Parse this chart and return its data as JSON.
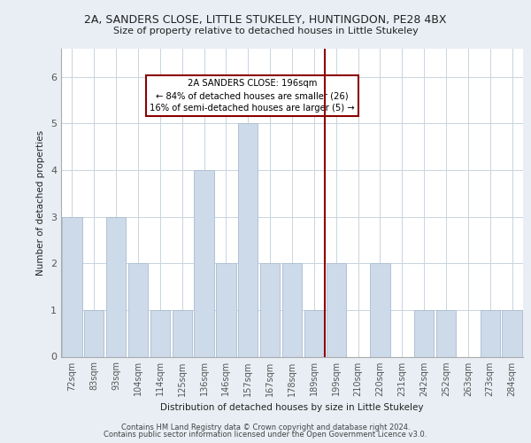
{
  "title": "2A, SANDERS CLOSE, LITTLE STUKELEY, HUNTINGDON, PE28 4BX",
  "subtitle": "Size of property relative to detached houses in Little Stukeley",
  "xlabel": "Distribution of detached houses by size in Little Stukeley",
  "ylabel": "Number of detached properties",
  "bar_labels": [
    "72sqm",
    "83sqm",
    "93sqm",
    "104sqm",
    "114sqm",
    "125sqm",
    "136sqm",
    "146sqm",
    "157sqm",
    "167sqm",
    "178sqm",
    "189sqm",
    "199sqm",
    "210sqm",
    "220sqm",
    "231sqm",
    "242sqm",
    "252sqm",
    "263sqm",
    "273sqm",
    "284sqm"
  ],
  "bar_values": [
    3,
    1,
    3,
    2,
    1,
    1,
    4,
    2,
    5,
    2,
    2,
    1,
    2,
    0,
    2,
    0,
    1,
    1,
    0,
    1,
    1
  ],
  "bar_color": "#ccdaea",
  "bar_edge_color": "#aabcce",
  "vline_index": 12,
  "vline_color": "#8b0000",
  "annotation_text": "2A SANDERS CLOSE: 196sqm\n← 84% of detached houses are smaller (26)\n16% of semi-detached houses are larger (5) →",
  "annotation_box_color": "#8b0000",
  "ylim": [
    0,
    6.6
  ],
  "yticks": [
    0,
    1,
    2,
    3,
    4,
    5,
    6
  ],
  "footer1": "Contains HM Land Registry data © Crown copyright and database right 2024.",
  "footer2": "Contains public sector information licensed under the Open Government Licence v3.0.",
  "bg_color": "#e8eef4",
  "plot_bg_color": "#ffffff",
  "grid_color": "#c8d4de"
}
